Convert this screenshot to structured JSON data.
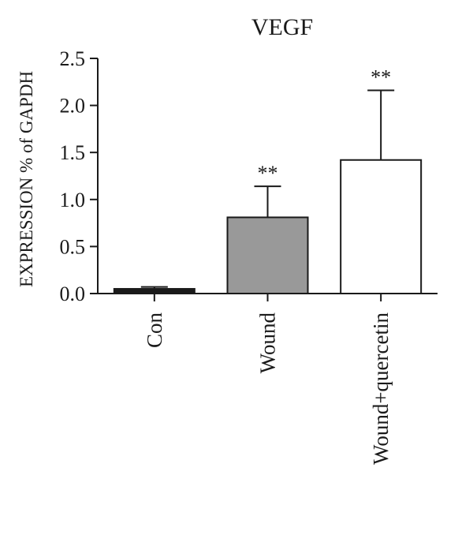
{
  "chart_data": {
    "type": "bar",
    "title": "VEGF",
    "ylabel": "EXPRESSION % of GAPDH",
    "xlabel": "",
    "categories": [
      "Con",
      "Wound",
      "Wound+quercetin"
    ],
    "values": [
      0.05,
      0.81,
      1.42
    ],
    "errors": [
      0.02,
      0.33,
      0.74
    ],
    "annotations": [
      "",
      "**",
      "**"
    ],
    "bar_colors": [
      "#1a1a1a",
      "#999999",
      "#ffffff"
    ],
    "ylim": [
      0,
      2.5
    ],
    "yticks": [
      0.0,
      0.5,
      1.0,
      1.5,
      2.0,
      2.5
    ],
    "ytick_labels": [
      "0.0",
      "0.5",
      "1.0",
      "1.5",
      "2.0",
      "2.5"
    ],
    "grid": false,
    "legend": "none"
  }
}
